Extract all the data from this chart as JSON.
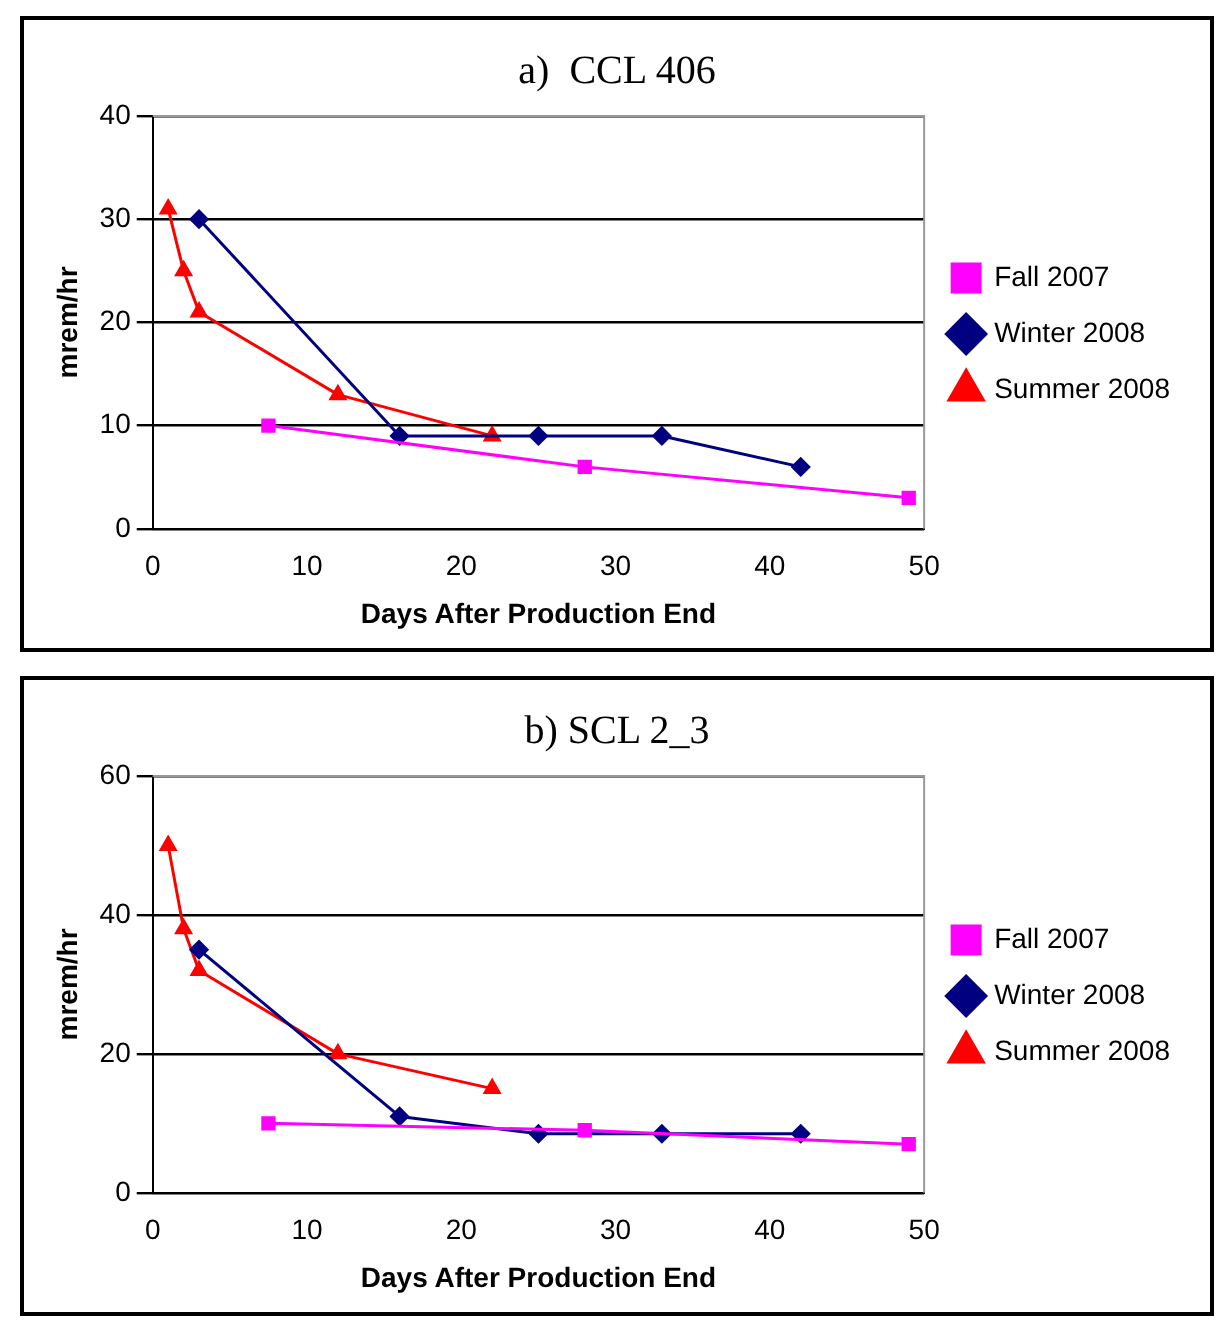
{
  "chart_data": [
    {
      "type": "line",
      "title": "a)  CCL 406",
      "xlabel": "Days After Production End",
      "ylabel": "mrem/hr",
      "xlim": [
        0,
        50
      ],
      "xticks": [
        0,
        10,
        20,
        30,
        40,
        50
      ],
      "ylim": [
        0,
        40
      ],
      "yticks": [
        0,
        10,
        20,
        30,
        40
      ],
      "grid": "y",
      "legend": "right",
      "series": [
        {
          "name": "Fall 2007",
          "color": "#ff00ff",
          "marker": "square",
          "x": [
            7.5,
            28,
            49
          ],
          "values": [
            10,
            6,
            3
          ]
        },
        {
          "name": "Winter 2008",
          "color": "#000080",
          "marker": "diamond",
          "x": [
            3,
            16,
            25,
            33,
            42
          ],
          "values": [
            30,
            9,
            9,
            9,
            6
          ]
        },
        {
          "name": "Summer 2008",
          "color": "#ff0000",
          "marker": "triangle",
          "x": [
            1,
            2,
            3,
            12,
            22
          ],
          "values": [
            31,
            25,
            21,
            13,
            9
          ]
        }
      ]
    },
    {
      "type": "line",
      "title": "b) SCL 2_3",
      "xlabel": "Days After Production End",
      "ylabel": "mrem/hr",
      "xlim": [
        0,
        50
      ],
      "xticks": [
        0,
        10,
        20,
        30,
        40,
        50
      ],
      "ylim": [
        0,
        60
      ],
      "yticks": [
        0,
        20,
        40,
        60
      ],
      "grid": "y",
      "legend": "right",
      "series": [
        {
          "name": "Fall 2007",
          "color": "#ff00ff",
          "marker": "square",
          "x": [
            7.5,
            28,
            49
          ],
          "values": [
            10,
            9,
            7
          ]
        },
        {
          "name": "Winter 2008",
          "color": "#000080",
          "marker": "diamond",
          "x": [
            3,
            16,
            25,
            33,
            42
          ],
          "values": [
            35,
            11,
            8.5,
            8.5,
            8.5
          ]
        },
        {
          "name": "Summer 2008",
          "color": "#ff0000",
          "marker": "triangle",
          "x": [
            1,
            2,
            3,
            12,
            22
          ],
          "values": [
            50,
            38,
            32,
            20,
            15
          ]
        }
      ]
    }
  ]
}
